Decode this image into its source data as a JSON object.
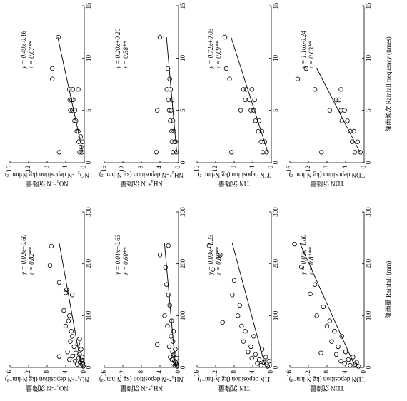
{
  "chart_data": [
    {
      "type": "scatter",
      "x": [
        1,
        1,
        1,
        1.5,
        2,
        2,
        2.5,
        3,
        3,
        4,
        4,
        5,
        5,
        5,
        6,
        6,
        6,
        7,
        7,
        7,
        8,
        9,
        12
      ],
      "values": [
        5.4,
        0.5,
        1.0,
        0.7,
        0.4,
        1.2,
        0.8,
        1.3,
        1.6,
        2.1,
        1.8,
        2.0,
        2.6,
        3.0,
        2.4,
        3.1,
        2.7,
        1.3,
        3.2,
        2.5,
        6.9,
        6.9,
        5.6
      ],
      "xlim": [
        0,
        15
      ],
      "xticks": [
        0,
        5,
        10,
        15
      ],
      "ylim": [
        0,
        16
      ],
      "yticks": [
        0,
        4,
        8,
        12,
        16
      ],
      "ylabel": [
        "NO₃⁻-N 沉降量",
        "NO₃⁻-N deposition (kg N·hm⁻²)"
      ],
      "equation": "y = 0.49x-0.16",
      "r": "r = 0.67**",
      "trendline": {
        "x": [
          1,
          12
        ],
        "values": [
          0.33,
          5.72
        ]
      }
    },
    {
      "type": "scatter",
      "x": [
        1,
        1,
        1,
        2,
        2,
        2,
        3,
        3,
        4,
        4,
        5,
        5,
        5,
        6,
        6,
        7,
        7,
        8,
        9,
        12
      ],
      "values": [
        4.8,
        0.5,
        1.2,
        0.8,
        1.4,
        0.6,
        1.0,
        1.5,
        1.2,
        1.8,
        4.6,
        1.6,
        2.0,
        1.4,
        2.2,
        1.7,
        2.5,
        1.9,
        2.3,
        4.0
      ],
      "xlim": [
        0,
        15
      ],
      "xticks": [
        0,
        5,
        10,
        15
      ],
      "ylim": [
        0,
        16
      ],
      "yticks": [
        0,
        4,
        8,
        12,
        16
      ],
      "ylabel": [
        "NH₄⁺-N 沉降量",
        "NH₄⁺-N deposition (kg N·hm⁻²)"
      ],
      "equation": "y = 0.20x+0.20",
      "r": "r = 0.58**",
      "trendline": {
        "x": [
          1,
          12
        ],
        "values": [
          0.4,
          2.6
        ]
      }
    },
    {
      "type": "scatter",
      "x": [
        1,
        1,
        1,
        2,
        2,
        3,
        3,
        4,
        4,
        5,
        5,
        5,
        6,
        6,
        6,
        7,
        7,
        7,
        8,
        9,
        12
      ],
      "values": [
        8.6,
        1.0,
        1.8,
        1.4,
        2.2,
        2.0,
        2.8,
        2.6,
        3.4,
        3.8,
        6.6,
        4.4,
        3.6,
        4.8,
        5.6,
        4.2,
        5.4,
        6.0,
        9.0,
        9.7,
        10.0
      ],
      "xlim": [
        0,
        15
      ],
      "xticks": [
        0,
        5,
        10,
        15
      ],
      "ylim": [
        0,
        16
      ],
      "yticks": [
        0,
        4,
        8,
        12,
        16
      ],
      "ylabel": [
        "TIN 沉降量",
        "TIN deposition (kg N·hm⁻²)"
      ],
      "equation": "y = 0.72x+0.03",
      "r": "r = 0.69**",
      "trendline": {
        "x": [
          1,
          12
        ],
        "values": [
          0.75,
          8.67
        ]
      }
    },
    {
      "type": "scatter",
      "x": [
        1,
        1,
        1,
        2,
        2,
        3,
        3,
        4,
        4,
        5,
        5,
        5,
        6,
        6,
        7,
        7,
        8,
        9
      ],
      "values": [
        9.2,
        0.8,
        2.0,
        1.4,
        2.6,
        2.2,
        3.0,
        3.6,
        4.8,
        7.4,
        4.2,
        5.0,
        5.4,
        6.0,
        10.6,
        5.0,
        14.3,
        12.5
      ],
      "xlim": [
        0,
        15
      ],
      "xticks": [
        0,
        5,
        10,
        15
      ],
      "ylim": [
        0,
        16
      ],
      "yticks": [
        0,
        4,
        8,
        12,
        16
      ],
      "ylabel": [
        "TDN 沉降量",
        "TDN deposition (kg N·hm⁻²)"
      ],
      "equation": "y = 1.16x-0.24",
      "r": "r = 0.63**",
      "xlabel": "降雨频次 Rainfall frequency (times)",
      "trendline": {
        "x": [
          1,
          9
        ],
        "values": [
          0.92,
          10.2
        ]
      }
    },
    {
      "type": "scatter",
      "x": [
        2,
        4,
        5,
        6,
        8,
        10,
        12,
        14,
        15,
        18,
        20,
        21,
        22,
        25,
        28,
        30,
        35,
        40,
        45,
        50,
        55,
        60,
        70,
        80,
        90,
        100,
        110,
        140,
        144,
        150,
        164,
        197,
        234
      ],
      "values": [
        0.2,
        0.8,
        0.4,
        1.5,
        0.3,
        0.9,
        2.0,
        0.6,
        3.2,
        1.2,
        0.5,
        5.4,
        2.5,
        1.0,
        1.8,
        3.6,
        0.7,
        2.2,
        1.4,
        3.0,
        1.0,
        2.6,
        2.8,
        4.0,
        3.4,
        3.2,
        4.4,
        2.6,
        4.0,
        3.8,
        5.4,
        7.4,
        7.1
      ],
      "xlim": [
        0,
        300
      ],
      "xticks": [
        0,
        100,
        200,
        300
      ],
      "ylim": [
        0,
        16
      ],
      "yticks": [
        0,
        4,
        8,
        12,
        16
      ],
      "ylabel": [
        "NO₃⁻-N 沉降量",
        "NO₃⁻-N deposition (kg N·hm⁻²)"
      ],
      "equation": "y = 0.02x+0.60",
      "r": "r = 0.82**",
      "trendline": {
        "x": [
          5,
          240
        ],
        "values": [
          0.7,
          5.4
        ]
      }
    },
    {
      "type": "scatter",
      "x": [
        2,
        4,
        6,
        8,
        10,
        12,
        15,
        18,
        20,
        25,
        30,
        35,
        40,
        44,
        50,
        60,
        70,
        80,
        90,
        100,
        120,
        140,
        160,
        193,
        217,
        235
      ],
      "values": [
        0.3,
        0.8,
        0.5,
        1.2,
        0.6,
        0.9,
        1.4,
        0.4,
        1.8,
        1.0,
        1.3,
        0.7,
        2.0,
        4.6,
        1.2,
        1.6,
        1.1,
        2.4,
        1.5,
        3.0,
        1.9,
        2.2,
        2.6,
        2.8,
        4.0,
        2.2
      ],
      "xlim": [
        0,
        300
      ],
      "xticks": [
        0,
        100,
        200,
        300
      ],
      "ylim": [
        0,
        16
      ],
      "yticks": [
        0,
        4,
        8,
        12,
        16
      ],
      "ylabel": [
        "NH₄⁺-N 沉降量",
        "NH₄⁺-N deposition (kg N·hm⁻²)"
      ],
      "equation": "y = 0.01x+0.63",
      "r": "r = 0.60**",
      "trendline": {
        "x": [
          5,
          240
        ],
        "values": [
          0.68,
          3.03
        ]
      }
    },
    {
      "type": "scatter",
      "x": [
        2,
        4,
        6,
        8,
        10,
        12,
        15,
        18,
        20,
        25,
        30,
        35,
        40,
        50,
        60,
        70,
        80,
        87,
        100,
        120,
        140,
        168,
        189,
        217,
        235
      ],
      "values": [
        0.8,
        2.2,
        1.0,
        3.0,
        1.6,
        0.5,
        2.6,
        4.2,
        1.2,
        3.4,
        5.0,
        2.0,
        4.4,
        6.0,
        3.8,
        5.6,
        6.4,
        10.5,
        7.2,
        6.8,
        8.4,
        8.0,
        12.6,
        11.0,
        13.4
      ],
      "xlim": [
        0,
        300
      ],
      "xticks": [
        0,
        100,
        200,
        300
      ],
      "ylim": [
        0,
        16
      ],
      "yticks": [
        0,
        4,
        8,
        12,
        16
      ],
      "ylabel": [
        "TIN 沉降量",
        "TIN deposition (kg N·hm⁻²)"
      ],
      "equation": "y = 0.03x+1.23",
      "r": "r = 0.80**",
      "trendline": {
        "x": [
          5,
          240
        ],
        "values": [
          1.38,
          8.43
        ]
      }
    },
    {
      "type": "scatter",
      "x": [
        2,
        4,
        6,
        8,
        10,
        12,
        15,
        20,
        25,
        28,
        30,
        40,
        50,
        60,
        70,
        80,
        90,
        100,
        117,
        142,
        160,
        194,
        238
      ],
      "values": [
        1.2,
        3.0,
        2.0,
        4.2,
        1.6,
        5.0,
        3.4,
        2.4,
        6.0,
        9.3,
        4.0,
        5.6,
        7.0,
        4.8,
        6.4,
        8.0,
        7.4,
        10.2,
        8.8,
        11.6,
        10.6,
        13.5,
        15.0
      ],
      "xlim": [
        0,
        300
      ],
      "xticks": [
        0,
        100,
        200,
        300
      ],
      "ylim": [
        0,
        16
      ],
      "yticks": [
        0,
        4,
        8,
        12,
        16
      ],
      "ylabel": [
        "TDN 沉降量",
        "TDN deposition (kg N·hm⁻²)"
      ],
      "equation": "y = 0.05x+1.86",
      "r": "r = 0.81**",
      "xlabel": "降雨量 Rainfall (mm)",
      "trendline": {
        "x": [
          5,
          240
        ],
        "values": [
          2.11,
          13.86
        ]
      }
    }
  ]
}
